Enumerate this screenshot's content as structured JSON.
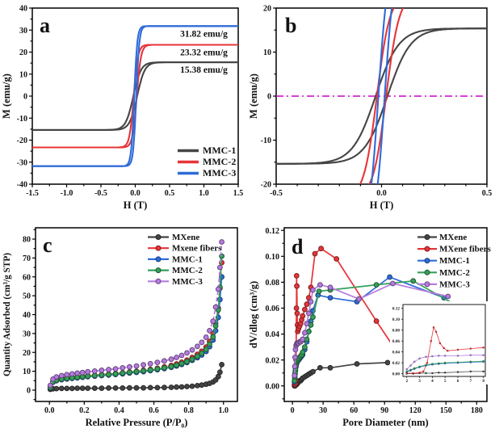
{
  "figure": {
    "background": "#ffffff",
    "description_colors": {
      "dark_gray": "#454545",
      "red": "#e73439",
      "blue": "#2e6bd9",
      "green": "#35a05a",
      "purple": "#b67bdf",
      "magenta_zero_line": "#cc00cc"
    }
  },
  "chart_data": [
    {
      "id": "a",
      "panel_label": "a",
      "type": "line",
      "xlabel": "H (T)",
      "ylabel": "M (emu/g)",
      "xlim": [
        -1.5,
        1.5
      ],
      "ylim": [
        -40,
        40
      ],
      "xticks": [
        -1.5,
        -1.0,
        -0.5,
        0.0,
        0.5,
        1.0,
        1.5
      ],
      "xtick_labels": [
        "-1.5",
        "-1.0",
        "-0.5",
        "0.0",
        "0.5",
        "1.0",
        "1.5"
      ],
      "yticks": [
        -40,
        -30,
        -20,
        -10,
        0,
        10,
        20,
        30,
        40
      ],
      "ytick_labels": [
        "-40",
        "-30",
        "-20",
        "-10",
        "0",
        "10",
        "20",
        "30",
        "40"
      ],
      "x_minor_step": 0.25,
      "y_minor_step": 5,
      "series": [
        {
          "name": "MMC-1",
          "color": "#454545",
          "model": "hysteresis",
          "saturation": 15.38,
          "coercivity": 0.028,
          "width": 0.11
        },
        {
          "name": "MMC-2",
          "color": "#e73439",
          "model": "hysteresis",
          "saturation": 23.32,
          "coercivity": 0.022,
          "width": 0.062
        },
        {
          "name": "MMC-3",
          "color": "#2e6bd9",
          "model": "hysteresis",
          "saturation": 31.82,
          "coercivity": 0.015,
          "width": 0.045
        }
      ],
      "annotations": [
        {
          "text": "31.82 emu/g",
          "color": "#2e6bd9",
          "x": 1.0,
          "y": 27.0
        },
        {
          "text": "23.32 emu/g",
          "color": "#e73439",
          "x": 1.0,
          "y": 18.6
        },
        {
          "text": "15.38 emu/g",
          "color": "#454545",
          "x": 1.0,
          "y": 10.6
        }
      ],
      "legend": {
        "position": "bottom-right",
        "items": [
          "MMC-1",
          "MMC-2",
          "MMC-3"
        ]
      }
    },
    {
      "id": "b",
      "panel_label": "b",
      "type": "line",
      "xlabel": "H (T)",
      "ylabel": "M (emu/g)",
      "xlim": [
        -0.5,
        0.5
      ],
      "ylim": [
        -20,
        20
      ],
      "xticks": [
        -0.5,
        0.0,
        0.5
      ],
      "xtick_labels": [
        "-0.5",
        "0.0",
        "0.5"
      ],
      "yticks": [
        -20,
        -10,
        0,
        10,
        20
      ],
      "ytick_labels": [
        "-20",
        "-10",
        "0",
        "10",
        "20"
      ],
      "x_minor_step": 0.1,
      "y_minor_step": 5,
      "zero_line": {
        "y": 0,
        "color": "#cc00cc",
        "style": "dash-dot"
      },
      "series": [
        {
          "name": "MMC-1",
          "color": "#454545",
          "model": "hysteresis",
          "saturation": 15.38,
          "coercivity": 0.028,
          "width": 0.11
        },
        {
          "name": "MMC-2",
          "color": "#e73439",
          "model": "hysteresis",
          "saturation": 23.32,
          "coercivity": 0.022,
          "width": 0.062
        },
        {
          "name": "MMC-3",
          "color": "#2e6bd9",
          "model": "hysteresis",
          "saturation": 31.82,
          "coercivity": 0.015,
          "width": 0.045
        }
      ]
    },
    {
      "id": "c",
      "panel_label": "c",
      "type": "scatter",
      "xlabel": "Relative Pressure (P/P₀)",
      "ylabel": "Quantity Adsorbed (cm³/g STP)",
      "xlim": [
        -0.08,
        1.08
      ],
      "ylim": [
        -6,
        86
      ],
      "xticks": [
        0.0,
        0.2,
        0.4,
        0.6,
        0.8,
        1.0
      ],
      "xtick_labels": [
        "0.0",
        "0.2",
        "0.4",
        "0.6",
        "0.8",
        "1.0"
      ],
      "yticks": [
        0,
        10,
        20,
        30,
        40,
        50,
        60,
        70,
        80
      ],
      "ytick_labels": [
        "0",
        "10",
        "20",
        "30",
        "40",
        "50",
        "60",
        "70",
        "80"
      ],
      "x_minor_step": 0.1,
      "y_minor_step": 5,
      "x": [
        0.005,
        0.02,
        0.04,
        0.07,
        0.1,
        0.13,
        0.16,
        0.19,
        0.22,
        0.26,
        0.3,
        0.34,
        0.38,
        0.42,
        0.46,
        0.5,
        0.54,
        0.58,
        0.62,
        0.66,
        0.7,
        0.73,
        0.76,
        0.79,
        0.82,
        0.85,
        0.875,
        0.9,
        0.92,
        0.94,
        0.955,
        0.97,
        0.98,
        0.99
      ],
      "series": [
        {
          "name": "MXene",
          "color": "#454545",
          "dashed": false,
          "values": [
            0.4,
            0.7,
            0.8,
            0.9,
            0.9,
            0.9,
            1.0,
            1.0,
            1.0,
            1.0,
            1.0,
            1.1,
            1.1,
            1.1,
            1.2,
            1.2,
            1.2,
            1.3,
            1.3,
            1.4,
            1.5,
            1.6,
            1.7,
            1.9,
            2.1,
            2.4,
            2.7,
            3.1,
            3.6,
            4.3,
            5.4,
            7.2,
            9.5,
            13.5
          ]
        },
        {
          "name": "Mxene fibers",
          "color": "#e73439",
          "dashed": true,
          "values": [
            1.5,
            4.8,
            5.6,
            6.1,
            6.5,
            6.8,
            7.1,
            7.3,
            7.6,
            7.9,
            8.2,
            8.5,
            8.8,
            9.2,
            9.6,
            10.0,
            10.5,
            11.0,
            11.6,
            12.3,
            13.1,
            13.9,
            14.8,
            15.9,
            17.3,
            19.0,
            20.6,
            22.8,
            25.8,
            30.0,
            35.5,
            43.5,
            54.0,
            67.5
          ]
        },
        {
          "name": "MMC-1",
          "color": "#2e6bd9",
          "dashed": false,
          "values": [
            1.2,
            4.2,
            5.0,
            5.5,
            5.9,
            6.2,
            6.5,
            6.8,
            7.1,
            7.4,
            7.7,
            8.0,
            8.3,
            8.6,
            9.0,
            9.4,
            9.8,
            10.3,
            10.8,
            11.4,
            12.1,
            12.8,
            13.6,
            14.6,
            15.8,
            17.2,
            18.6,
            20.5,
            23.0,
            26.5,
            31.5,
            38.5,
            48.0,
            60.0
          ]
        },
        {
          "name": "MMC-2",
          "color": "#35a05a",
          "dashed": false,
          "values": [
            1.4,
            4.4,
            5.2,
            5.8,
            6.2,
            6.5,
            6.8,
            7.1,
            7.4,
            7.7,
            8.0,
            8.3,
            8.6,
            9.0,
            9.4,
            9.8,
            10.2,
            10.7,
            11.2,
            11.8,
            12.5,
            13.2,
            14.1,
            15.1,
            16.4,
            17.9,
            19.5,
            21.6,
            24.4,
            28.2,
            34.0,
            42.5,
            54.5,
            71.0
          ]
        },
        {
          "name": "MMC-3",
          "color": "#b67bdf",
          "dashed": true,
          "values": [
            2.5,
            5.8,
            7.0,
            7.7,
            8.2,
            8.6,
            9.0,
            9.3,
            9.7,
            10.1,
            10.5,
            10.9,
            11.3,
            11.8,
            12.3,
            12.8,
            13.4,
            14.0,
            14.7,
            15.5,
            16.4,
            17.3,
            18.4,
            19.7,
            21.3,
            23.2,
            25.3,
            28.0,
            31.5,
            36.5,
            44.0,
            53.5,
            65.0,
            78.5
          ]
        }
      ],
      "legend": {
        "position": "top-center-left",
        "items": [
          "MXene",
          "Mxene fibers",
          "MMC-1",
          "MMC-2",
          "MMC-3"
        ]
      }
    },
    {
      "id": "d",
      "panel_label": "d",
      "type": "scatter",
      "xlabel": "Pore Diameter (nm)",
      "ylabel": "dV/dlog (cm³/g)",
      "xlim": [
        -8,
        190
      ],
      "ylim": [
        -0.012,
        0.122
      ],
      "xticks": [
        0,
        30,
        60,
        90,
        120,
        150,
        180
      ],
      "xtick_labels": [
        "0",
        "30",
        "60",
        "90",
        "120",
        "150",
        "180"
      ],
      "yticks": [
        0.0,
        0.02,
        0.04,
        0.06,
        0.08,
        0.1,
        0.12
      ],
      "ytick_labels": [
        "0.00",
        "0.02",
        "0.04",
        "0.06",
        "0.08",
        "0.10",
        "0.12"
      ],
      "x_minor_step": 15,
      "y_minor_step": 0.01,
      "series": [
        {
          "name": "MXene",
          "color": "#454545",
          "points": [
            [
              2,
              0.0
            ],
            [
              2.5,
              0.0
            ],
            [
              3,
              0.001
            ],
            [
              3.5,
              0.001
            ],
            [
              4,
              0.001
            ],
            [
              4.5,
              0.002
            ],
            [
              5,
              0.002
            ],
            [
              6,
              0.003
            ],
            [
              7,
              0.004
            ],
            [
              8,
              0.004
            ],
            [
              9,
              0.005
            ],
            [
              10,
              0.006
            ],
            [
              12,
              0.007
            ],
            [
              14,
              0.008
            ],
            [
              16,
              0.009
            ],
            [
              18,
              0.01
            ],
            [
              20,
              0.011
            ],
            [
              27,
              0.014
            ],
            [
              37,
              0.014
            ],
            [
              63,
              0.017
            ],
            [
              93,
              0.018
            ],
            [
              115,
              0.016
            ],
            [
              172,
              0.012
            ]
          ]
        },
        {
          "name": "MXene fibers",
          "color": "#e73439",
          "points": [
            [
              2,
              0.001
            ],
            [
              2.5,
              0.001
            ],
            [
              3,
              0.002
            ],
            [
              3.3,
              0.004
            ],
            [
              3.6,
              0.02
            ],
            [
              3.9,
              0.06
            ],
            [
              4.1,
              0.085
            ],
            [
              4.3,
              0.077
            ],
            [
              4.6,
              0.056
            ],
            [
              4.9,
              0.047
            ],
            [
              5.2,
              0.042
            ],
            [
              6,
              0.044
            ],
            [
              7,
              0.046
            ],
            [
              8,
              0.048
            ],
            [
              9,
              0.051
            ],
            [
              10,
              0.054
            ],
            [
              12,
              0.059
            ],
            [
              14,
              0.063
            ],
            [
              16,
              0.068
            ],
            [
              18,
              0.076
            ],
            [
              22,
              0.102
            ],
            [
              28,
              0.106
            ],
            [
              43,
              0.098
            ],
            [
              82,
              0.05
            ],
            [
              115,
              0.011
            ]
          ]
        },
        {
          "name": "MMC-1",
          "color": "#2e6bd9",
          "points": [
            [
              2,
              0.003
            ],
            [
              2.3,
              0.006
            ],
            [
              2.6,
              0.009
            ],
            [
              3,
              0.012
            ],
            [
              3.5,
              0.015
            ],
            [
              4,
              0.017
            ],
            [
              4.5,
              0.018
            ],
            [
              5,
              0.019
            ],
            [
              6,
              0.02
            ],
            [
              7,
              0.021
            ],
            [
              8,
              0.022
            ],
            [
              9,
              0.023
            ],
            [
              10,
              0.024
            ],
            [
              12,
              0.028
            ],
            [
              14,
              0.034
            ],
            [
              16,
              0.042
            ],
            [
              18,
              0.05
            ],
            [
              20,
              0.058
            ],
            [
              25,
              0.07
            ],
            [
              37,
              0.068
            ],
            [
              63,
              0.065
            ],
            [
              95,
              0.084
            ],
            [
              148,
              0.068
            ]
          ]
        },
        {
          "name": "MMC-2",
          "color": "#35a05a",
          "points": [
            [
              2,
              0.004
            ],
            [
              2.3,
              0.007
            ],
            [
              2.6,
              0.01
            ],
            [
              3,
              0.013
            ],
            [
              3.5,
              0.016
            ],
            [
              4,
              0.018
            ],
            [
              4.5,
              0.019
            ],
            [
              5,
              0.02
            ],
            [
              6,
              0.021
            ],
            [
              7,
              0.022
            ],
            [
              8,
              0.023
            ],
            [
              9,
              0.024
            ],
            [
              10,
              0.026
            ],
            [
              12,
              0.03
            ],
            [
              14,
              0.036
            ],
            [
              16,
              0.042
            ],
            [
              18,
              0.047
            ],
            [
              20,
              0.053
            ],
            [
              26,
              0.073
            ],
            [
              37,
              0.074
            ],
            [
              82,
              0.078
            ],
            [
              118,
              0.081
            ],
            [
              165,
              0.06
            ]
          ]
        },
        {
          "name": "MMC-3",
          "color": "#b67bdf",
          "points": [
            [
              2,
              0.008
            ],
            [
              2.3,
              0.015
            ],
            [
              2.6,
              0.022
            ],
            [
              3,
              0.028
            ],
            [
              3.5,
              0.031
            ],
            [
              4,
              0.032
            ],
            [
              4.5,
              0.033
            ],
            [
              5,
              0.033
            ],
            [
              6,
              0.033
            ],
            [
              7,
              0.034
            ],
            [
              8,
              0.034
            ],
            [
              9,
              0.035
            ],
            [
              10,
              0.036
            ],
            [
              12,
              0.041
            ],
            [
              14,
              0.048
            ],
            [
              16,
              0.056
            ],
            [
              18,
              0.065
            ],
            [
              20,
              0.074
            ],
            [
              27,
              0.078
            ],
            [
              37,
              0.076
            ],
            [
              65,
              0.067
            ],
            [
              98,
              0.079
            ],
            [
              152,
              0.069
            ]
          ]
        }
      ],
      "legend": {
        "position": "top-right",
        "items": [
          "MXene",
          "MXene fibers",
          "MMC-1",
          "MMC-2",
          "MMC-3"
        ]
      },
      "inset": {
        "xlim": [
          1.7,
          8.15
        ],
        "ylim": [
          -0.005,
          0.127
        ],
        "xticks": [
          2,
          3,
          4,
          5,
          6,
          7,
          8
        ],
        "xtick_labels": [
          "2",
          "3",
          "4",
          "5",
          "6",
          "7",
          "8"
        ],
        "yticks": [
          0.0,
          0.02,
          0.04,
          0.06,
          0.08,
          0.1,
          0.12
        ],
        "ytick_labels": [
          "0.00",
          "0.02",
          "0.04",
          "0.06",
          "0.08",
          "0.10",
          "0.12"
        ]
      }
    }
  ]
}
